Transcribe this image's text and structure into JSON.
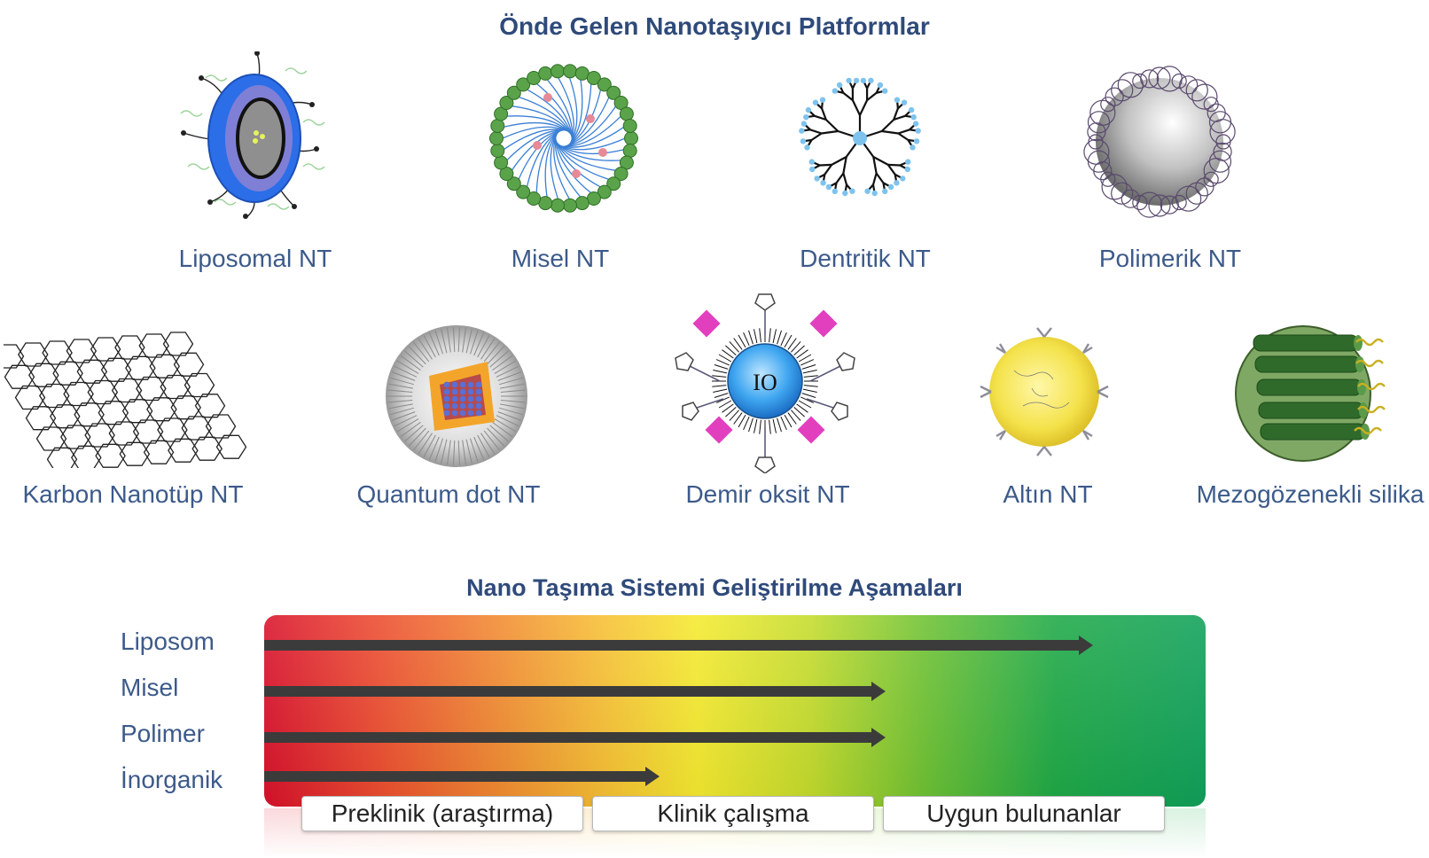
{
  "top_title": "Önde Gelen Nanotaşıyıcı Platformlar",
  "platforms_row1": [
    {
      "label": "Liposomal NT",
      "icon": "liposome-icon"
    },
    {
      "label": "Misel NT",
      "icon": "micelle-icon"
    },
    {
      "label": "Dentritik NT",
      "icon": "dendrimer-icon"
    },
    {
      "label": "Polimerik NT",
      "icon": "polymeric-icon"
    }
  ],
  "platforms_row2": [
    {
      "label": "Karbon Nanotüp NT",
      "icon": "carbon-nanotube-icon"
    },
    {
      "label": "Quantum dot NT",
      "icon": "quantum-dot-icon"
    },
    {
      "label": "Demir oksit NT",
      "icon": "iron-oxide-icon",
      "icon_text": "IO"
    },
    {
      "label": "Altın NT",
      "icon": "gold-icon"
    },
    {
      "label": "Mezogözenekli silika",
      "icon": "mesoporous-silica-icon"
    }
  ],
  "stages_title": "Nano Taşıma Sistemi Geliştirilme Aşamaları",
  "stages": [
    "Preklinik (araştırma)",
    "Klinik çalışma",
    "Uygun bulunanlar"
  ],
  "progress": [
    {
      "label": "Liposom",
      "fraction": 0.88
    },
    {
      "label": "Misel",
      "fraction": 0.66
    },
    {
      "label": "Polimer",
      "fraction": 0.66
    },
    {
      "label": "İnorganik",
      "fraction": 0.42
    }
  ],
  "colors": {
    "title": "#2f4a7a",
    "label": "#3c5a8a",
    "arrow": "#3b3b3b",
    "gradient_start": "#d9112b",
    "gradient_end": "#10a15a"
  }
}
